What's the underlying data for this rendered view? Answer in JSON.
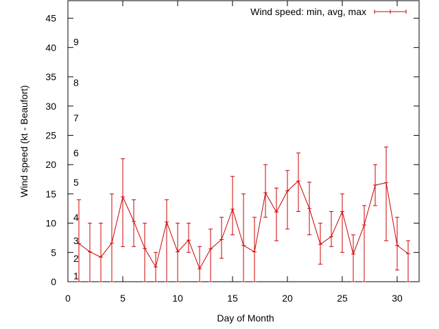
{
  "chart_data": {
    "type": "line",
    "xlabel": "Day of Month",
    "ylabel": "Wind speed (kt - Beaufort)",
    "xlim": [
      0,
      32
    ],
    "ylim": [
      0,
      48
    ],
    "xticks": [
      0,
      5,
      10,
      15,
      20,
      25,
      30
    ],
    "yticks": [
      0,
      5,
      10,
      15,
      20,
      25,
      30,
      35,
      40,
      45
    ],
    "grid": false,
    "legend_position": "top-right",
    "series_color": "#cc0000",
    "beaufort_labels": [
      {
        "label": "1",
        "kt": 1
      },
      {
        "label": "2",
        "kt": 4
      },
      {
        "label": "3",
        "kt": 7
      },
      {
        "label": "4",
        "kt": 11
      },
      {
        "label": "5",
        "kt": 17
      },
      {
        "label": "6",
        "kt": 22
      },
      {
        "label": "7",
        "kt": 28
      },
      {
        "label": "8",
        "kt": 34
      },
      {
        "label": "9",
        "kt": 41
      }
    ],
    "series": [
      {
        "name": "Wind speed: min, avg, max",
        "x": [
          1,
          2,
          3,
          4,
          5,
          6,
          7,
          8,
          9,
          10,
          11,
          12,
          13,
          14,
          15,
          16,
          17,
          18,
          19,
          20,
          21,
          22,
          23,
          24,
          25,
          26,
          27,
          28,
          29,
          30,
          31
        ],
        "avg": [
          6.5,
          5.1,
          4.2,
          6.6,
          14.5,
          10.3,
          5.7,
          2.5,
          10.2,
          5.1,
          7.1,
          2.2,
          5.6,
          7.2,
          12.4,
          6.2,
          5.1,
          15.2,
          11.9,
          15.5,
          17.2,
          12.5,
          6.4,
          7.7,
          12.0,
          4.7,
          9.7,
          16.5,
          16.9,
          6.2,
          4.8
        ],
        "min": [
          0,
          0,
          0,
          0,
          6,
          6,
          0,
          0,
          0,
          0,
          5,
          0,
          0,
          4,
          8,
          0,
          0,
          11,
          7,
          9,
          12,
          8,
          3,
          6,
          5,
          0,
          0,
          13,
          7,
          2,
          0
        ],
        "max": [
          14,
          10,
          10,
          15,
          21,
          14,
          10,
          5,
          14,
          10,
          10,
          6,
          9,
          11,
          18,
          15,
          11,
          20,
          16,
          19,
          22,
          17,
          10,
          12,
          15,
          8,
          13,
          20,
          23,
          11,
          7
        ]
      }
    ]
  }
}
